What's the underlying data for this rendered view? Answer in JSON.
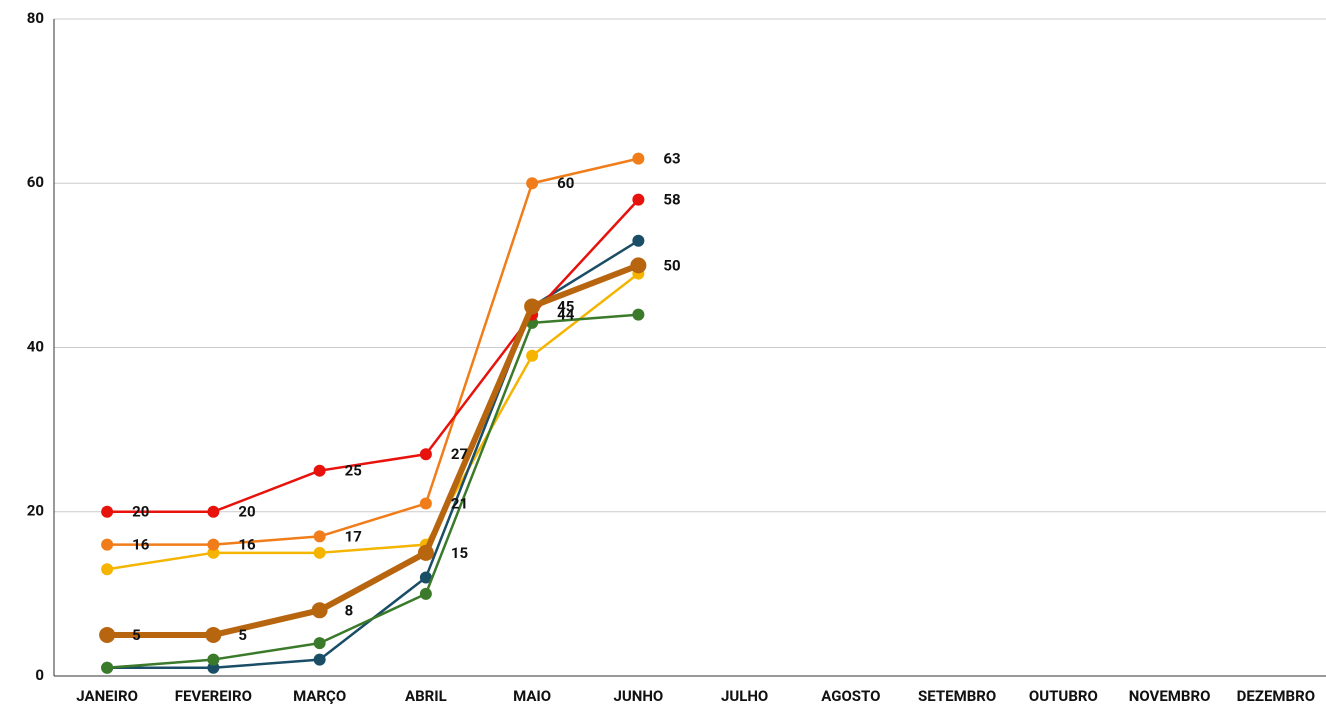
{
  "chart_data": {
    "type": "line",
    "categories": [
      "JANEIRO",
      "FEVEREIRO",
      "MARÇO",
      "ABRIL",
      "MAIO",
      "JUNHO",
      "JULHO",
      "AGOSTO",
      "SETEMBRO",
      "OUTUBRO",
      "NOVEMBRO",
      "DEZEMBRO"
    ],
    "series": [
      {
        "color": "#f4b400",
        "width": 2.5,
        "show_labels": false,
        "values": [
          13,
          15,
          15,
          16,
          39,
          49,
          null,
          null,
          null,
          null,
          null,
          null
        ]
      },
      {
        "color": "#1a4d66",
        "width": 2.5,
        "show_labels": false,
        "values": [
          1,
          1,
          2,
          12,
          45,
          53,
          null,
          null,
          null,
          null,
          null,
          null
        ]
      },
      {
        "color": "#3a7a2a",
        "width": 2.5,
        "show_labels": false,
        "values": [
          1,
          2,
          4,
          10,
          43,
          44,
          null,
          null,
          null,
          null,
          null,
          null
        ]
      },
      {
        "color": "#f07d1a",
        "width": 2.5,
        "show_labels": true,
        "values": [
          16,
          16,
          17,
          21,
          60,
          63,
          null,
          null,
          null,
          null,
          null,
          null
        ]
      },
      {
        "color": "#e8120c",
        "width": 2.5,
        "show_labels": true,
        "values": [
          20,
          20,
          25,
          27,
          44,
          58,
          null,
          null,
          null,
          null,
          null,
          null
        ]
      },
      {
        "color": "#b8650f",
        "width": 6,
        "show_labels": true,
        "values": [
          5,
          5,
          8,
          15,
          45,
          50,
          null,
          null,
          null,
          null,
          null,
          null
        ]
      }
    ],
    "ylim": [
      0,
      80
    ],
    "yticks": [
      0,
      20,
      40,
      60,
      80
    ],
    "grid": true
  }
}
